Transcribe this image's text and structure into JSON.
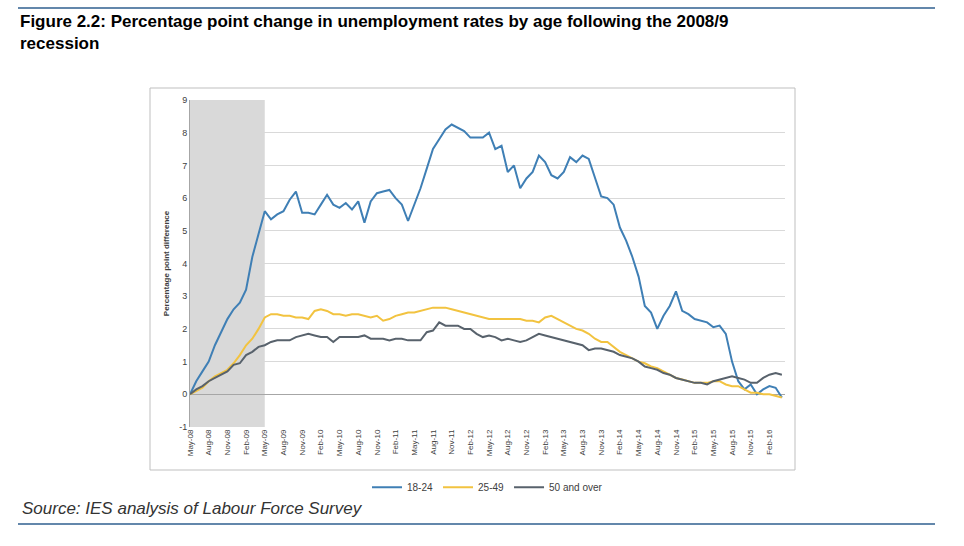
{
  "chart_data": {
    "type": "line",
    "title": "Figure 2.2: Percentage point change in unemployment rates by age following the 2008/9 recession",
    "source": "Source: IES analysis of Labour Force Survey",
    "y_label": "Percentage point difference",
    "categories": [
      "May-08",
      null,
      null,
      "Aug-08",
      null,
      null,
      "Nov-08",
      null,
      null,
      "Feb-09",
      null,
      null,
      "May-09",
      null,
      null,
      "Aug-09",
      null,
      null,
      "Nov-09",
      null,
      null,
      "Feb-10",
      null,
      null,
      "May-10",
      null,
      null,
      "Aug-10",
      null,
      null,
      "Nov-10",
      null,
      null,
      "Feb-11",
      null,
      null,
      "May-11",
      null,
      null,
      "Aug-11",
      null,
      null,
      "Nov-11",
      null,
      null,
      "Feb-12",
      null,
      null,
      "May-12",
      null,
      null,
      "Aug-12",
      null,
      null,
      "Nov-12",
      null,
      null,
      "Feb-13",
      null,
      null,
      "May-13",
      null,
      null,
      "Aug-13",
      null,
      null,
      "Nov-13",
      null,
      null,
      "Feb-14",
      null,
      null,
      "May-14",
      null,
      null,
      "Aug-14",
      null,
      null,
      "Nov-14",
      null,
      null,
      "Feb-15",
      null,
      null,
      "May-15",
      null,
      null,
      "Aug-15",
      null,
      null,
      "Nov-15",
      null,
      null,
      "Feb-16",
      null,
      null
    ],
    "series": [
      {
        "name": "18-24",
        "color": "#3f7fb5",
        "values": [
          0.0,
          0.4,
          0.7,
          1.0,
          1.5,
          1.9,
          2.3,
          2.6,
          2.8,
          3.2,
          4.2,
          4.9,
          5.6,
          5.35,
          5.5,
          5.6,
          5.95,
          6.2,
          5.55,
          5.55,
          5.5,
          5.8,
          6.1,
          5.8,
          5.7,
          5.85,
          5.65,
          5.9,
          5.25,
          5.9,
          6.15,
          6.2,
          6.25,
          6.0,
          5.8,
          5.3,
          5.8,
          6.3,
          6.9,
          7.5,
          7.8,
          8.1,
          8.25,
          8.15,
          8.05,
          7.85,
          7.85,
          7.85,
          8.0,
          7.5,
          7.6,
          6.8,
          7.0,
          6.3,
          6.6,
          6.8,
          7.3,
          7.1,
          6.7,
          6.6,
          6.8,
          7.25,
          7.1,
          7.3,
          7.2,
          6.6,
          6.05,
          6.0,
          5.8,
          5.1,
          4.7,
          4.2,
          3.6,
          2.7,
          2.5,
          2.0,
          2.4,
          2.7,
          3.15,
          2.55,
          2.45,
          2.3,
          2.25,
          2.2,
          2.05,
          2.1,
          1.85,
          1.0,
          0.4,
          0.15,
          0.3,
          0.0,
          0.15,
          0.25,
          0.2,
          -0.1
        ]
      },
      {
        "name": "25-49",
        "color": "#f2c340",
        "values": [
          0.0,
          0.1,
          0.2,
          0.4,
          0.55,
          0.65,
          0.75,
          0.95,
          1.2,
          1.5,
          1.7,
          2.0,
          2.35,
          2.45,
          2.45,
          2.4,
          2.4,
          2.35,
          2.35,
          2.3,
          2.55,
          2.6,
          2.55,
          2.45,
          2.45,
          2.4,
          2.45,
          2.45,
          2.4,
          2.35,
          2.4,
          2.25,
          2.3,
          2.4,
          2.45,
          2.5,
          2.5,
          2.55,
          2.6,
          2.65,
          2.65,
          2.65,
          2.6,
          2.55,
          2.5,
          2.45,
          2.4,
          2.35,
          2.3,
          2.3,
          2.3,
          2.3,
          2.3,
          2.3,
          2.25,
          2.25,
          2.2,
          2.35,
          2.4,
          2.3,
          2.2,
          2.1,
          2.0,
          1.95,
          1.85,
          1.7,
          1.6,
          1.6,
          1.45,
          1.3,
          1.2,
          1.1,
          1.0,
          0.95,
          0.85,
          0.8,
          0.7,
          0.6,
          0.5,
          0.45,
          0.4,
          0.35,
          0.35,
          0.35,
          0.4,
          0.4,
          0.3,
          0.25,
          0.25,
          0.15,
          0.05,
          0.05,
          0.0,
          0.0,
          -0.05,
          -0.1
        ]
      },
      {
        "name": "50 and over",
        "color": "#58626c",
        "values": [
          0.0,
          0.15,
          0.25,
          0.4,
          0.5,
          0.6,
          0.7,
          0.9,
          0.95,
          1.2,
          1.3,
          1.45,
          1.5,
          1.6,
          1.65,
          1.65,
          1.65,
          1.75,
          1.8,
          1.85,
          1.8,
          1.75,
          1.75,
          1.6,
          1.75,
          1.75,
          1.75,
          1.75,
          1.8,
          1.7,
          1.7,
          1.7,
          1.65,
          1.7,
          1.7,
          1.65,
          1.65,
          1.65,
          1.9,
          1.95,
          2.2,
          2.1,
          2.1,
          2.1,
          2.0,
          2.0,
          1.85,
          1.75,
          1.8,
          1.75,
          1.65,
          1.7,
          1.65,
          1.6,
          1.65,
          1.75,
          1.85,
          1.8,
          1.75,
          1.7,
          1.65,
          1.6,
          1.55,
          1.5,
          1.35,
          1.4,
          1.4,
          1.35,
          1.3,
          1.2,
          1.15,
          1.1,
          1.0,
          0.85,
          0.8,
          0.75,
          0.65,
          0.6,
          0.5,
          0.45,
          0.4,
          0.35,
          0.35,
          0.3,
          0.4,
          0.45,
          0.5,
          0.55,
          0.5,
          0.45,
          0.35,
          0.35,
          0.5,
          0.6,
          0.65,
          0.6
        ]
      }
    ],
    "shaded": {
      "from": "May-08",
      "to": "May-09"
    },
    "ylim": [
      -1,
      9
    ],
    "yticks": [
      -1,
      0,
      1,
      2,
      3,
      4,
      5,
      6,
      7,
      8,
      9
    ],
    "grid": true,
    "legend": "bottom"
  }
}
